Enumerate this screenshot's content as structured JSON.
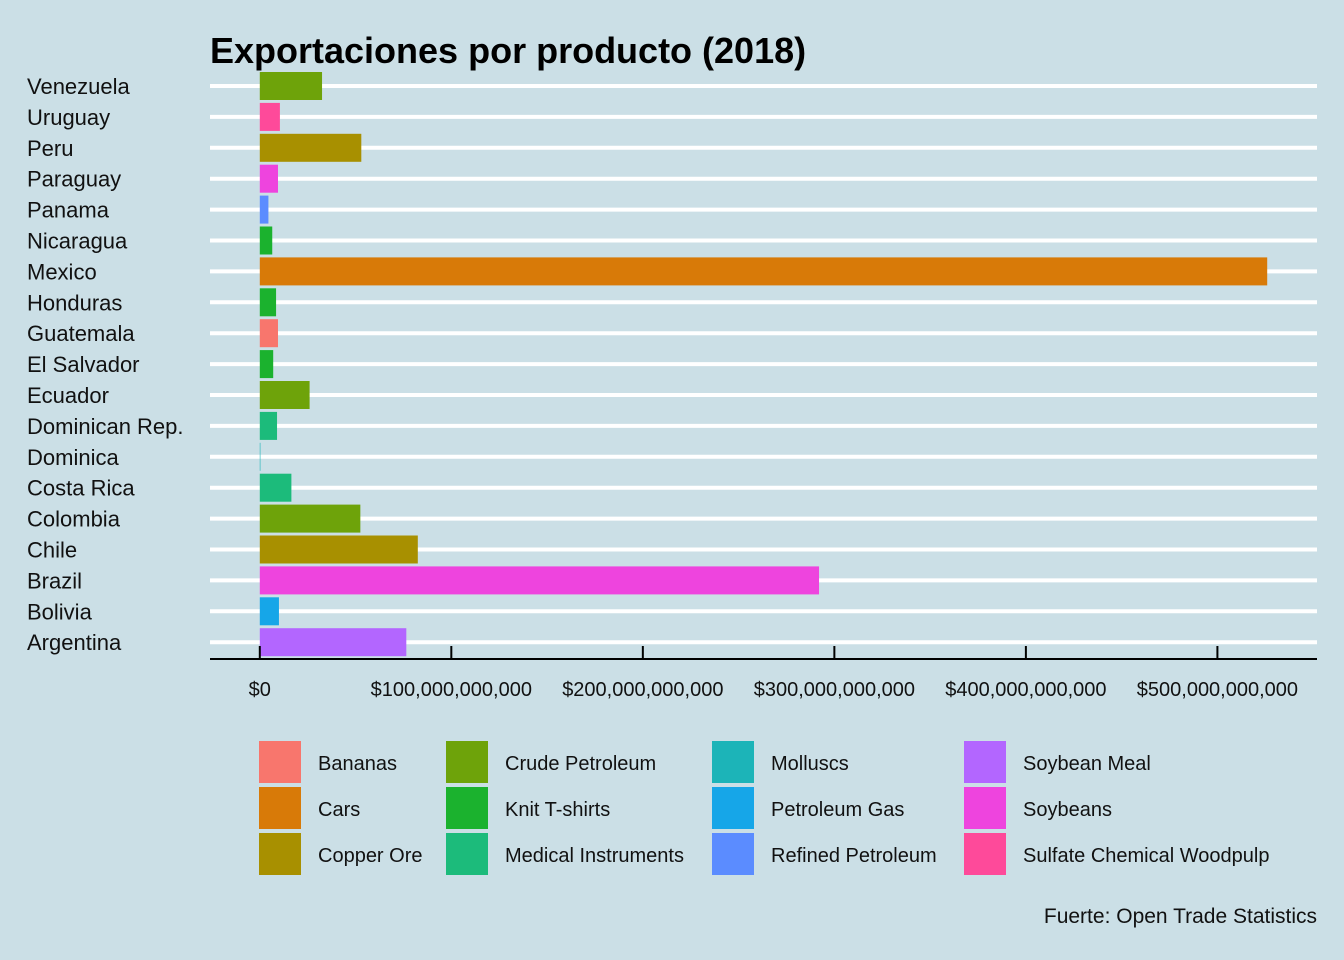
{
  "chart_data": {
    "type": "bar",
    "orientation": "horizontal",
    "title": "Exportaciones por producto (2018)",
    "caption": "Fuerte: Open Trade Statistics",
    "xlabel": "",
    "ylabel": "",
    "xlim": [
      -26000000000,
      552000000000
    ],
    "grid": "horizontal-only",
    "legend_position": "bottom",
    "x_ticks": [
      0,
      100000000000,
      200000000000,
      300000000000,
      400000000000,
      500000000000
    ],
    "x_tick_labels": [
      "$0",
      "$100,000,000,000",
      "$200,000,000,000",
      "$300,000,000,000",
      "$400,000,000,000",
      "$500,000,000,000"
    ],
    "categories": [
      "Venezuela",
      "Uruguay",
      "Peru",
      "Paraguay",
      "Panama",
      "Nicaragua",
      "Mexico",
      "Honduras",
      "Guatemala",
      "El Salvador",
      "Ecuador",
      "Dominican Rep.",
      "Dominica",
      "Costa Rica",
      "Colombia",
      "Chile",
      "Brazil",
      "Bolivia",
      "Argentina"
    ],
    "values": [
      32500000000,
      10500000000,
      53000000000,
      9500000000,
      4500000000,
      6500000000,
      526000000000,
      8500000000,
      9500000000,
      7000000000,
      26000000000,
      9000000000,
      200000000,
      16500000000,
      52500000000,
      82500000000,
      292000000000,
      10000000000,
      76500000000
    ],
    "products": [
      "Crude Petroleum",
      "Sulfate Chemical Woodpulp",
      "Copper Ore",
      "Soybeans",
      "Refined Petroleum",
      "Knit T-shirts",
      "Cars",
      "Knit T-shirts",
      "Bananas",
      "Knit T-shirts",
      "Crude Petroleum",
      "Medical Instruments",
      "Molluscs",
      "Medical Instruments",
      "Crude Petroleum",
      "Copper Ore",
      "Soybeans",
      "Petroleum Gas",
      "Soybean Meal"
    ],
    "legend": [
      {
        "name": "Bananas",
        "color": "#f8766d"
      },
      {
        "name": "Cars",
        "color": "#d87a08"
      },
      {
        "name": "Copper Ore",
        "color": "#a89000"
      },
      {
        "name": "Crude Petroleum",
        "color": "#6ea30a"
      },
      {
        "name": "Knit T-shirts",
        "color": "#1bb22e"
      },
      {
        "name": "Medical Instruments",
        "color": "#1cbb7b"
      },
      {
        "name": "Molluscs",
        "color": "#1cb4b8"
      },
      {
        "name": "Petroleum Gas",
        "color": "#16a6e8"
      },
      {
        "name": "Refined Petroleum",
        "color": "#5b8cff"
      },
      {
        "name": "Soybean Meal",
        "color": "#b366ff"
      },
      {
        "name": "Soybeans",
        "color": "#ee44de"
      },
      {
        "name": "Sulfate Chemical Woodpulp",
        "color": "#fe4a9a"
      }
    ]
  }
}
